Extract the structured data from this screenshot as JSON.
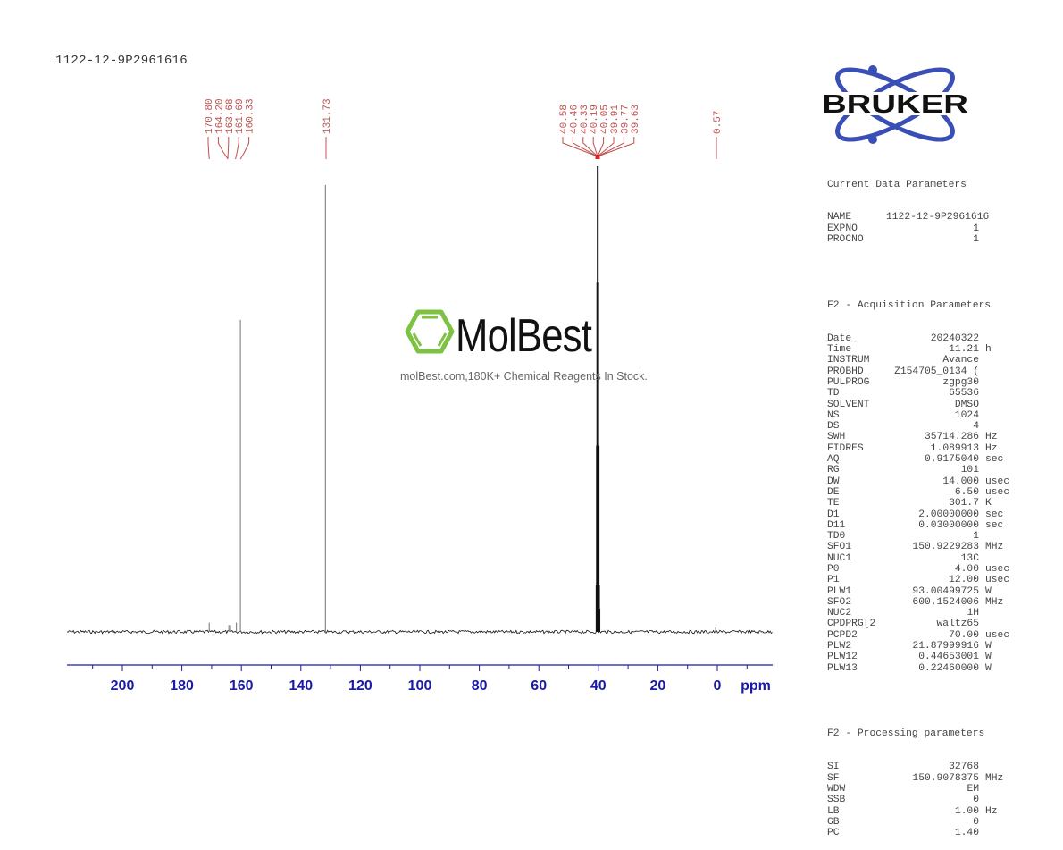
{
  "header": {
    "title": "1122-12-9P2961616"
  },
  "watermark": {
    "brand": "MolBest",
    "tagline": "molBest.com,180K+ Chemical Reagents In Stock.",
    "logo_color": "#7dc242"
  },
  "logo": {
    "text": "BRUKER",
    "orbit_color": "#3a4fb5"
  },
  "colors": {
    "axis": "#1a1aa8",
    "peak_label": "#c0504d",
    "spectrum": "#000000"
  },
  "chart_data": {
    "type": "line",
    "title": "1122-12-9P2961616",
    "xlabel": "ppm",
    "ylabel": "",
    "xlim": [
      218,
      -18
    ],
    "x_reversed": true,
    "xticks": [
      200,
      180,
      160,
      140,
      120,
      100,
      80,
      60,
      40,
      20,
      0
    ],
    "xtick_labels": [
      "200",
      "180",
      "160",
      "140",
      "120",
      "100",
      "80",
      "60",
      "40",
      "20",
      "0"
    ],
    "grid": false,
    "legend": null,
    "peak_labels": [
      "170.80",
      "164.20",
      "163.68",
      "161.69",
      "160.33",
      "131.73",
      "40.58",
      "40.46",
      "40.33",
      "40.19",
      "40.05",
      "39.91",
      "39.77",
      "39.63",
      "0.57"
    ],
    "peaks": [
      {
        "ppm": 170.8,
        "rel_height": 0.02
      },
      {
        "ppm": 164.2,
        "rel_height": 0.015
      },
      {
        "ppm": 163.68,
        "rel_height": 0.015
      },
      {
        "ppm": 161.69,
        "rel_height": 0.02
      },
      {
        "ppm": 160.33,
        "rel_height": 0.67
      },
      {
        "ppm": 131.73,
        "rel_height": 0.96
      },
      {
        "ppm": 40.58,
        "rel_height": 0.1
      },
      {
        "ppm": 40.46,
        "rel_height": 0.4
      },
      {
        "ppm": 40.33,
        "rel_height": 0.75
      },
      {
        "ppm": 40.19,
        "rel_height": 1.0
      },
      {
        "ppm": 40.05,
        "rel_height": 0.75
      },
      {
        "ppm": 39.91,
        "rel_height": 0.4
      },
      {
        "ppm": 39.77,
        "rel_height": 0.1
      },
      {
        "ppm": 39.63,
        "rel_height": 0.05
      },
      {
        "ppm": 0.57,
        "rel_height": 0.01
      }
    ]
  },
  "parameters": {
    "current": {
      "title": "Current Data Parameters",
      "rows": [
        {
          "k": "NAME",
          "v": "1122-12-9P2961616",
          "u": ""
        },
        {
          "k": "EXPNO",
          "v": "1",
          "u": ""
        },
        {
          "k": "PROCNO",
          "v": "1",
          "u": ""
        }
      ]
    },
    "acquisition": {
      "title": "F2 - Acquisition Parameters",
      "rows": [
        {
          "k": "Date_",
          "v": "20240322",
          "u": ""
        },
        {
          "k": "Time",
          "v": "11.21",
          "u": "h"
        },
        {
          "k": "INSTRUM",
          "v": "Avance",
          "u": ""
        },
        {
          "k": "PROBHD",
          "v": "Z154705_0134 (",
          "u": ""
        },
        {
          "k": "PULPROG",
          "v": "zgpg30",
          "u": ""
        },
        {
          "k": "TD",
          "v": "65536",
          "u": ""
        },
        {
          "k": "SOLVENT",
          "v": "DMSO",
          "u": ""
        },
        {
          "k": "NS",
          "v": "1024",
          "u": ""
        },
        {
          "k": "DS",
          "v": "4",
          "u": ""
        },
        {
          "k": "SWH",
          "v": "35714.286",
          "u": "Hz"
        },
        {
          "k": "FIDRES",
          "v": "1.089913",
          "u": "Hz"
        },
        {
          "k": "AQ",
          "v": "0.9175040",
          "u": "sec"
        },
        {
          "k": "RG",
          "v": "101",
          "u": ""
        },
        {
          "k": "DW",
          "v": "14.000",
          "u": "usec"
        },
        {
          "k": "DE",
          "v": "6.50",
          "u": "usec"
        },
        {
          "k": "TE",
          "v": "301.7",
          "u": "K"
        },
        {
          "k": "D1",
          "v": "2.00000000",
          "u": "sec"
        },
        {
          "k": "D11",
          "v": "0.03000000",
          "u": "sec"
        },
        {
          "k": "TD0",
          "v": "1",
          "u": ""
        },
        {
          "k": "SFO1",
          "v": "150.9229283",
          "u": "MHz"
        },
        {
          "k": "NUC1",
          "v": "13C",
          "u": ""
        },
        {
          "k": "P0",
          "v": "4.00",
          "u": "usec"
        },
        {
          "k": "P1",
          "v": "12.00",
          "u": "usec"
        },
        {
          "k": "PLW1",
          "v": "93.00499725",
          "u": "W"
        },
        {
          "k": "SFO2",
          "v": "600.1524006",
          "u": "MHz"
        },
        {
          "k": "NUC2",
          "v": "1H",
          "u": ""
        },
        {
          "k": "CPDPRG[2",
          "v": "waltz65",
          "u": ""
        },
        {
          "k": "PCPD2",
          "v": "70.00",
          "u": "usec"
        },
        {
          "k": "PLW2",
          "v": "21.87999916",
          "u": "W"
        },
        {
          "k": "PLW12",
          "v": "0.44653001",
          "u": "W"
        },
        {
          "k": "PLW13",
          "v": "0.22460000",
          "u": "W"
        }
      ]
    },
    "processing": {
      "title": "F2 - Processing parameters",
      "rows": [
        {
          "k": "SI",
          "v": "32768",
          "u": ""
        },
        {
          "k": "SF",
          "v": "150.9078375",
          "u": "MHz"
        },
        {
          "k": "WDW",
          "v": "EM",
          "u": ""
        },
        {
          "k": "SSB",
          "v": "0",
          "u": ""
        },
        {
          "k": "LB",
          "v": "1.00",
          "u": "Hz"
        },
        {
          "k": "GB",
          "v": "0",
          "u": ""
        },
        {
          "k": "PC",
          "v": "1.40",
          "u": ""
        }
      ]
    }
  }
}
